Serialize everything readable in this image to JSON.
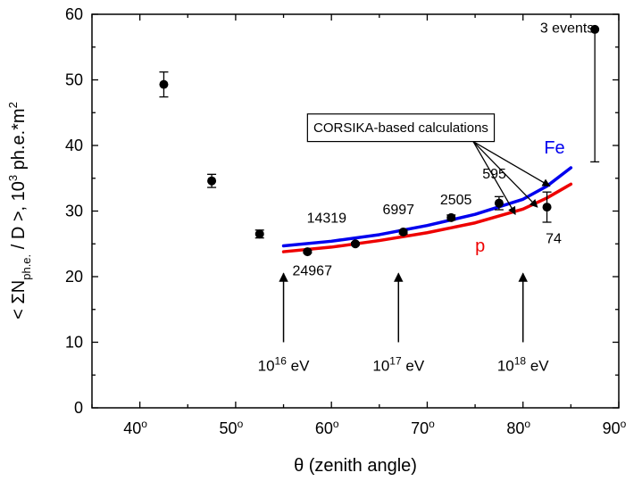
{
  "chart_data": {
    "type": "scatter",
    "xlabel": "θ (zenith angle)",
    "ylabel_parts": [
      "< ΣN",
      "ph.e.",
      " / D >, 10",
      "3",
      " ph.e.*m",
      "2"
    ],
    "xlim": [
      35,
      90
    ],
    "ylim": [
      0,
      60
    ],
    "x_ticks": [
      40,
      50,
      60,
      70,
      80,
      90
    ],
    "x_tick_suffix": "o",
    "y_ticks": [
      0,
      10,
      20,
      30,
      40,
      50,
      60
    ],
    "points": [
      {
        "x": 42.5,
        "y": 49.3,
        "err_low": 1.9,
        "err_high": 1.9
      },
      {
        "x": 47.5,
        "y": 34.6,
        "err_low": 1.0,
        "err_high": 1.0
      },
      {
        "x": 52.5,
        "y": 26.5,
        "err_low": 0.6,
        "err_high": 0.6
      },
      {
        "x": 57.5,
        "y": 23.8,
        "err_low": 0.2,
        "err_high": 0.2
      },
      {
        "x": 62.5,
        "y": 25.0,
        "err_low": 0.2,
        "err_high": 0.2
      },
      {
        "x": 67.5,
        "y": 26.8,
        "err_low": 0.3,
        "err_high": 0.3
      },
      {
        "x": 72.5,
        "y": 29.0,
        "err_low": 0.4,
        "err_high": 0.4
      },
      {
        "x": 77.5,
        "y": 31.2,
        "err_low": 1.0,
        "err_high": 1.0
      },
      {
        "x": 82.5,
        "y": 30.6,
        "err_low": 2.3,
        "err_high": 2.3
      },
      {
        "x": 87.5,
        "y": 57.7,
        "err_low": 20.2,
        "err_high": 0
      }
    ],
    "event_labels": [
      {
        "text": "24967",
        "x": 58.0,
        "y": 20.2
      },
      {
        "text": "14319",
        "x": 59.5,
        "y": 28.2
      },
      {
        "text": "6997",
        "x": 67.0,
        "y": 29.5
      },
      {
        "text": "2505",
        "x": 73.0,
        "y": 31.0
      },
      {
        "text": "595",
        "x": 77.0,
        "y": 35.0
      },
      {
        "text": "74",
        "x": 83.2,
        "y": 25.1
      },
      {
        "text": "3 events",
        "x": 84.6,
        "y": 57.2
      }
    ],
    "series": [
      {
        "name": "Fe",
        "color": "#0000ee",
        "x": [
          55,
          60,
          65,
          70,
          75,
          80,
          82.5,
          85
        ],
        "y": [
          24.7,
          25.4,
          26.4,
          27.8,
          29.5,
          31.8,
          33.8,
          36.6
        ]
      },
      {
        "name": "p",
        "color": "#ee0000",
        "x": [
          55,
          60,
          65,
          70,
          75,
          80,
          82.5,
          85
        ],
        "y": [
          23.8,
          24.5,
          25.5,
          26.7,
          28.2,
          30.3,
          32.0,
          34.1
        ]
      }
    ],
    "series_labels": [
      {
        "text": "Fe",
        "x": 82.2,
        "y": 38.8,
        "color": "#0000ee"
      },
      {
        "text": "p",
        "x": 75.0,
        "y": 23.8,
        "color": "#ee0000"
      }
    ],
    "annotation_box": {
      "text": "CORSIKA-based calculations",
      "x1": 57.5,
      "x2": 77.0,
      "y1": 40.6,
      "y2": 44.8
    },
    "annotation_arrows": [
      {
        "from": [
          74.8,
          40.6
        ],
        "to": [
          82.8,
          33.8
        ]
      },
      {
        "from": [
          74.8,
          40.6
        ],
        "to": [
          81.5,
          30.6
        ]
      },
      {
        "from": [
          74.8,
          40.6
        ],
        "to": [
          79.2,
          29.5
        ]
      }
    ],
    "energy_markers": [
      {
        "x": 55,
        "y_from": 10.0,
        "y_to": 20.5,
        "base": "10",
        "exp": "16",
        "unit": " eV"
      },
      {
        "x": 67,
        "y_from": 10.0,
        "y_to": 20.5,
        "base": "10",
        "exp": "17",
        "unit": " eV"
      },
      {
        "x": 80,
        "y_from": 10.0,
        "y_to": 20.5,
        "base": "10",
        "exp": "18",
        "unit": " eV"
      }
    ]
  }
}
